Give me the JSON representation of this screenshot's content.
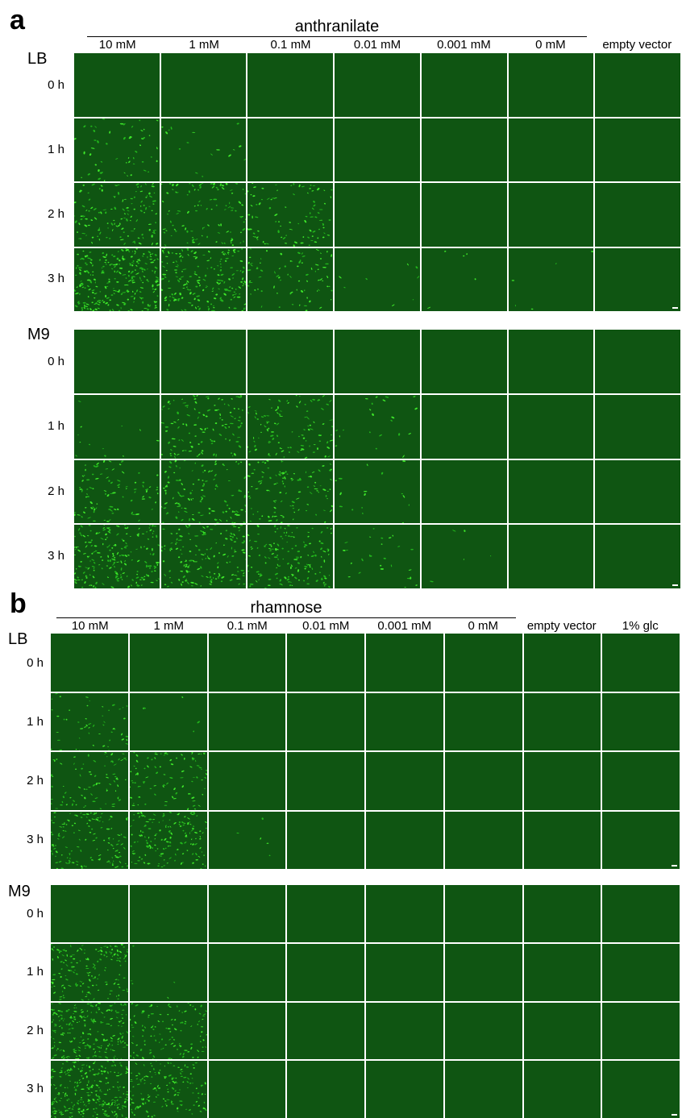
{
  "panel_a": {
    "letter": "a",
    "group_title": "anthranilate",
    "columns": [
      "10 mM",
      "1 mM",
      "0.1 mM",
      "0.01 mM",
      "0.001 mM",
      "0 mM",
      "empty vector"
    ],
    "blocks": [
      {
        "medium": "LB",
        "rows": [
          "0 h",
          "1 h",
          "2 h",
          "3 h"
        ],
        "cell_density": [
          [
            0,
            0,
            0,
            0,
            0,
            0,
            0
          ],
          [
            0.2,
            0.06,
            0,
            0,
            0,
            0,
            0
          ],
          [
            0.5,
            0.4,
            0.35,
            0,
            0,
            0,
            0
          ],
          [
            0.95,
            0.7,
            0.3,
            0.03,
            0.02,
            0.02,
            0
          ]
        ]
      },
      {
        "medium": "M9",
        "rows": [
          "0 h",
          "1 h",
          "2 h",
          "3 h"
        ],
        "cell_density": [
          [
            0,
            0,
            0,
            0,
            0,
            0,
            0
          ],
          [
            0.05,
            0.45,
            0.4,
            0.08,
            0,
            0,
            0
          ],
          [
            0.35,
            0.45,
            0.4,
            0.06,
            0,
            0,
            0
          ],
          [
            0.75,
            0.6,
            0.55,
            0.1,
            0.02,
            0,
            0
          ]
        ]
      }
    ]
  },
  "panel_b": {
    "letter": "b",
    "group_title": "rhamnose",
    "columns": [
      "10 mM",
      "1 mM",
      "0.1 mM",
      "0.01 mM",
      "0.001 mM",
      "0 mM",
      "empty vector",
      "1% glc"
    ],
    "blocks": [
      {
        "medium": "LB",
        "rows": [
          "0 h",
          "1 h",
          "2 h",
          "3 h"
        ],
        "cell_density": [
          [
            0,
            0,
            0,
            0,
            0,
            0,
            0,
            0
          ],
          [
            0.2,
            0.02,
            0,
            0,
            0,
            0,
            0,
            0
          ],
          [
            0.3,
            0.35,
            0,
            0,
            0,
            0,
            0,
            0
          ],
          [
            0.55,
            0.6,
            0.02,
            0,
            0,
            0,
            0,
            0
          ]
        ]
      },
      {
        "medium": "M9",
        "rows": [
          "0 h",
          "1 h",
          "2 h",
          "3 h"
        ],
        "cell_density": [
          [
            0,
            0,
            0,
            0,
            0,
            0,
            0,
            0
          ],
          [
            0.6,
            0.02,
            0,
            0,
            0,
            0,
            0,
            0
          ],
          [
            0.85,
            0.45,
            0,
            0,
            0,
            0,
            0,
            0
          ],
          [
            1.0,
            0.55,
            0,
            0,
            0,
            0,
            0,
            0
          ]
        ]
      }
    ]
  },
  "colors": {
    "background_tile": "#0f5512",
    "cell_bright": "#3ee82a",
    "cell_dim": "#22b51c",
    "separator": "#ffffff"
  }
}
